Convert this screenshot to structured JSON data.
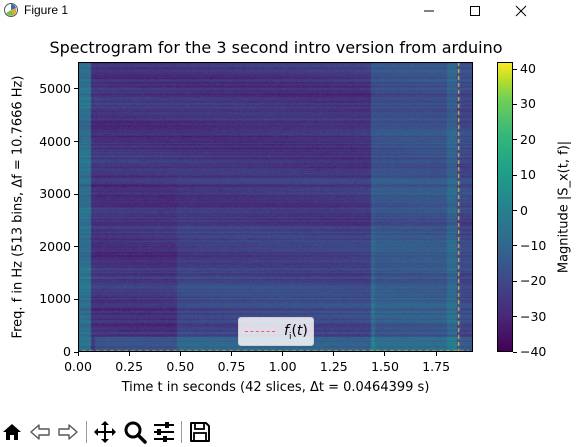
{
  "window": {
    "title": "Figure 1",
    "buttons": {
      "minimize": "minimize",
      "maximize": "maximize",
      "close": "close"
    }
  },
  "toolbar": {
    "tools": [
      "home-icon",
      "back-arrow-icon",
      "forward-arrow-icon",
      "pan-icon",
      "zoom-icon",
      "configure-subplots-icon",
      "save-icon"
    ]
  },
  "colors": {
    "colormap": "viridis",
    "legend_line": "#ff5a5a",
    "marker_line": "#e6c84a"
  },
  "chart_data": {
    "type": "heatmap",
    "title": "Spectrogram for the 3 second intro version from arduino",
    "xlabel": "Time t in seconds (42 slices, Δt = 0.0464399 s)",
    "ylabel": "Freq. f in Hz (513 bins, Δf = 10.7666 Hz)",
    "xlim": [
      0,
      1.93
    ],
    "ylim": [
      0,
      5512
    ],
    "x_ticks": [
      0.0,
      0.25,
      0.5,
      0.75,
      1.0,
      1.25,
      1.5,
      1.75
    ],
    "x_tick_labels": [
      "0.00",
      "0.25",
      "0.50",
      "0.75",
      "1.00",
      "1.25",
      "1.50",
      "1.75"
    ],
    "y_ticks": [
      0,
      1000,
      2000,
      3000,
      4000,
      5000
    ],
    "y_tick_labels": [
      "0",
      "1000",
      "2000",
      "3000",
      "4000",
      "5000"
    ],
    "colorbar": {
      "label": "Magnitude |S_x(t, f)|",
      "range": [
        -40,
        42
      ],
      "ticks": [
        -40,
        -30,
        -20,
        -10,
        0,
        10,
        20,
        30,
        40
      ],
      "tick_labels": [
        "−40",
        "−30",
        "−20",
        "−10",
        "0",
        "10",
        "20",
        "30",
        "40"
      ]
    },
    "legend": {
      "entries": [
        "f_i(t)"
      ],
      "placement": "lower center"
    },
    "annotations": [
      {
        "type": "dashed-line",
        "name": "f_i(t)",
        "y": 0,
        "x_range": [
          0.02,
          1.91
        ]
      },
      {
        "type": "dashed-vertical-line",
        "x": 1.86,
        "y_range": [
          0,
          5512
        ]
      }
    ],
    "time_slices": 42,
    "freq_bins": 513,
    "dt": 0.0464399,
    "df": 10.7666
  }
}
